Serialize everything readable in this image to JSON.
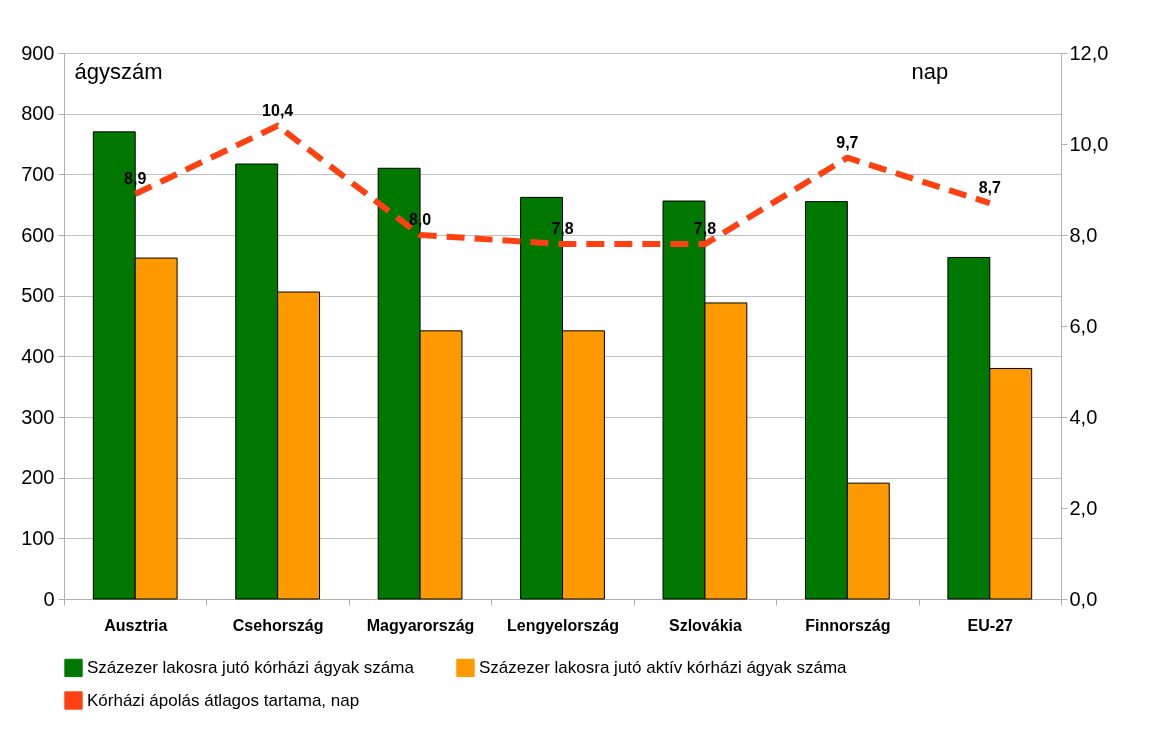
{
  "chart_data": {
    "type": "bar",
    "categories": [
      "Ausztria",
      "Csehország",
      "Magyarország",
      "Lengyelország",
      "Szlovákia",
      "Finnország",
      "EU-27"
    ],
    "ylabel": "ágyszám",
    "y2label": "nap",
    "series": [
      {
        "name": "Százezer lakosra jutó kórházi ágyak száma",
        "color": "#007800",
        "values": [
          770,
          717,
          710,
          662,
          656,
          655,
          563
        ]
      },
      {
        "name": "Százezer lakosra jutó aktív kórházi ágyak száma",
        "color": "#ff9900",
        "values": [
          562,
          506,
          442,
          442,
          488,
          191,
          380
        ]
      },
      {
        "name": "Kórházi ápolás átlagos tartama, nap",
        "type": "line",
        "axis": "y2",
        "color": "#ff4010",
        "line_style": "dashed",
        "marker": "none",
        "values": [
          8.9,
          10.4,
          8.0,
          7.8,
          7.8,
          9.7,
          8.7
        ],
        "value_labels": [
          "8,9",
          "10,4",
          "8,0",
          "7,8",
          "7,8",
          "9,7",
          "8,7"
        ]
      }
    ],
    "ylim": [
      0,
      900
    ],
    "yticks": [
      0,
      100,
      200,
      300,
      400,
      500,
      600,
      700,
      800,
      900
    ],
    "y2lim": [
      0,
      12
    ],
    "y2ticks": [
      {
        "value": 0,
        "label": "0,0"
      },
      {
        "value": 2,
        "label": "2,0"
      },
      {
        "value": 4,
        "label": "4,0"
      },
      {
        "value": 6,
        "label": "6,0"
      },
      {
        "value": 8,
        "label": "8,0"
      },
      {
        "value": 10,
        "label": "10,0"
      },
      {
        "value": 12,
        "label": "12,0"
      }
    ],
    "grid": "y",
    "legend": "bottom"
  }
}
